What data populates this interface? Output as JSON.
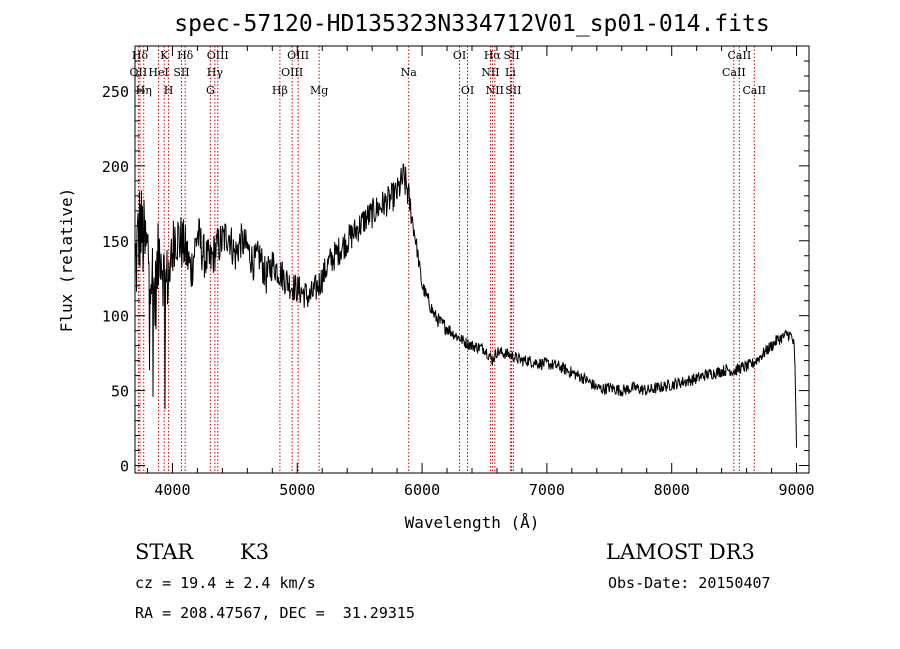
{
  "chart_data": {
    "type": "line",
    "title": "spec-57120-HD135323N334712V01_sp01-014.fits",
    "xlabel": "Wavelength (Å)",
    "ylabel": "Flux (relative)",
    "xlim": [
      3700,
      9100
    ],
    "ylim": [
      -5,
      280
    ],
    "x_ticks": [
      4000,
      5000,
      6000,
      7000,
      8000,
      9000
    ],
    "y_ticks": [
      0,
      50,
      100,
      150,
      200,
      250
    ],
    "series": [
      {
        "name": "flux",
        "color": "#000000",
        "x": [
          3700,
          3740,
          3780,
          3820,
          3860,
          3900,
          3940,
          3980,
          4020,
          4060,
          4100,
          4150,
          4200,
          4250,
          4300,
          4350,
          4400,
          4450,
          4500,
          4550,
          4600,
          4650,
          4700,
          4750,
          4800,
          4850,
          4900,
          4950,
          5000,
          5050,
          5100,
          5150,
          5200,
          5250,
          5300,
          5350,
          5400,
          5450,
          5500,
          5550,
          5600,
          5650,
          5700,
          5750,
          5800,
          5850,
          5880,
          5900,
          5920,
          5950,
          6000,
          6050,
          6100,
          6150,
          6200,
          6250,
          6300,
          6350,
          6400,
          6450,
          6500,
          6550,
          6560,
          6600,
          6650,
          6700,
          6750,
          6800,
          6850,
          6900,
          6950,
          7000,
          7050,
          7100,
          7150,
          7200,
          7250,
          7300,
          7350,
          7400,
          7450,
          7500,
          7550,
          7600,
          7650,
          7700,
          7750,
          7800,
          7850,
          7900,
          7950,
          8000,
          8050,
          8100,
          8150,
          8200,
          8250,
          8300,
          8350,
          8400,
          8450,
          8500,
          8550,
          8600,
          8650,
          8700,
          8750,
          8800,
          8850,
          8900,
          8930,
          8960,
          8980,
          8990,
          9000
        ],
        "y": [
          130,
          160,
          145,
          140,
          110,
          150,
          120,
          130,
          155,
          150,
          145,
          130,
          155,
          140,
          135,
          145,
          150,
          155,
          140,
          150,
          145,
          135,
          140,
          125,
          135,
          130,
          125,
          120,
          118,
          115,
          112,
          118,
          125,
          135,
          140,
          145,
          150,
          155,
          160,
          165,
          168,
          172,
          175,
          178,
          182,
          192,
          185,
          175,
          165,
          150,
          120,
          110,
          100,
          95,
          92,
          88,
          85,
          82,
          80,
          79,
          78,
          72,
          70,
          76,
          75,
          74,
          72,
          70,
          70,
          69,
          68,
          68,
          67,
          66,
          64,
          62,
          60,
          58,
          55,
          52,
          51,
          52,
          51,
          50,
          51,
          52,
          51,
          50,
          51,
          52,
          53,
          54,
          55,
          56,
          57,
          58,
          60,
          61,
          62,
          63,
          64,
          63,
          65,
          66,
          68,
          72,
          76,
          80,
          84,
          86,
          88,
          86,
          80,
          60,
          10
        ],
        "noise_amplitude": [
          35,
          35,
          30,
          30,
          28,
          28,
          25,
          22,
          20,
          20,
          18,
          16,
          16,
          15,
          15,
          14,
          14,
          13,
          13,
          12,
          12,
          12,
          12,
          12,
          11,
          11,
          11,
          10,
          10,
          10,
          10,
          10,
          10,
          10,
          10,
          10,
          10,
          10,
          10,
          10,
          10,
          10,
          10,
          10,
          10,
          12,
          12,
          10,
          8,
          6,
          5,
          5,
          5,
          5,
          5,
          4,
          4,
          4,
          4,
          4,
          4,
          4,
          4,
          4,
          4,
          4,
          4,
          4,
          4,
          4,
          4,
          4,
          4,
          4,
          4,
          4,
          4,
          4,
          4,
          4,
          4,
          4,
          4,
          4,
          4,
          4,
          4,
          4,
          4,
          4,
          4,
          4,
          4,
          4,
          4,
          4,
          4,
          4,
          4,
          4,
          4,
          4,
          4,
          4,
          4,
          4,
          4,
          4,
          4,
          4,
          4,
          4,
          4,
          4,
          4
        ]
      }
    ],
    "spectral_lines": [
      {
        "label": "Hδ",
        "x": 3740,
        "row": 0
      },
      {
        "label": "OII",
        "x": 3727,
        "row": 1
      },
      {
        "label": "Hη",
        "x": 3770,
        "row": 2
      },
      {
        "label": "K",
        "x": 3934,
        "row": 0
      },
      {
        "label": "HeI",
        "x": 3889,
        "row": 1
      },
      {
        "label": "H",
        "x": 3969,
        "row": 2
      },
      {
        "label": "Hδ",
        "x": 4102,
        "row": 0
      },
      {
        "label": "SII",
        "x": 4072,
        "row": 1
      },
      {
        "label": "OIII",
        "x": 4363,
        "row": 0
      },
      {
        "label": "Hγ",
        "x": 4340,
        "row": 1
      },
      {
        "label": "G",
        "x": 4304,
        "row": 2
      },
      {
        "label": "Hβ",
        "x": 4861,
        "row": 2
      },
      {
        "label": "OIII",
        "x": 5007,
        "row": 0
      },
      {
        "label": "OIII",
        "x": 4959,
        "row": 1
      },
      {
        "label": "Mg",
        "x": 5175,
        "row": 2
      },
      {
        "label": "Na",
        "x": 5893,
        "row": 1
      },
      {
        "label": "OI",
        "x": 6300,
        "row": 0
      },
      {
        "label": "OI",
        "x": 6364,
        "row": 2
      },
      {
        "label": "Hα",
        "x": 6563,
        "row": 0
      },
      {
        "label": "NII",
        "x": 6548,
        "row": 1
      },
      {
        "label": "NII",
        "x": 6583,
        "row": 2
      },
      {
        "label": "SII",
        "x": 6717,
        "row": 0
      },
      {
        "label": "Li",
        "x": 6708,
        "row": 1
      },
      {
        "label": "SII",
        "x": 6731,
        "row": 2
      },
      {
        "label": "CaII",
        "x": 8542,
        "row": 0
      },
      {
        "label": "CaII",
        "x": 8498,
        "row": 1
      },
      {
        "label": "CaII",
        "x": 8662,
        "row": 2
      }
    ],
    "line_color": "#cc0000"
  },
  "info": {
    "class": "STAR",
    "subclass": "K3",
    "survey": "LAMOST DR3",
    "cz": "cz = 19.4 ± 2.4 km/s",
    "obs_date": "Obs-Date: 20150407",
    "radec": "RA = 208.47567, DEC =  31.29315"
  }
}
